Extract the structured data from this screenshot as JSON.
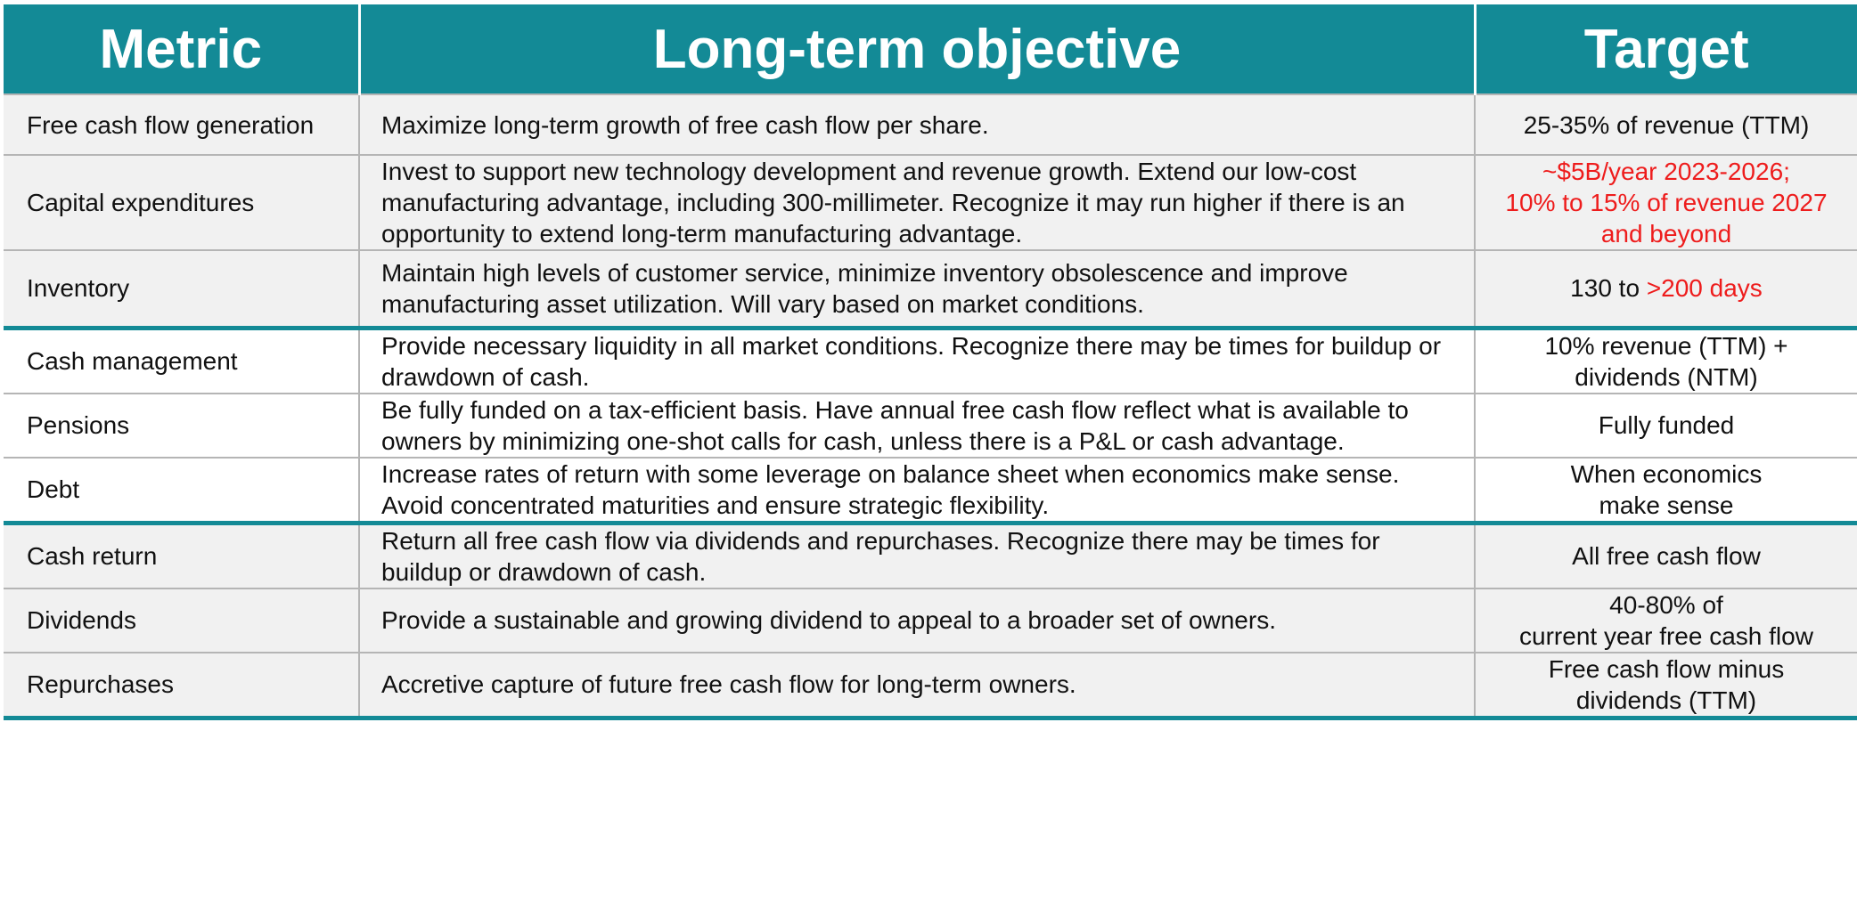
{
  "header": {
    "metric": "Metric",
    "objective": "Long-term objective",
    "target": "Target"
  },
  "colors": {
    "header_bg": "#138a96",
    "highlight_text": "#ee1c1c",
    "shaded_row_bg": "#f1f1f1"
  },
  "rows": [
    {
      "metric": "Free cash flow generation",
      "objective": "Maximize long-term growth of free cash flow per share.",
      "target_lines": [
        "25-35% of revenue (TTM)"
      ]
    },
    {
      "metric": "Capital expenditures",
      "objective": "Invest to support new technology development and revenue growth. Extend our low-cost manufacturing advantage, including 300-millimeter. Recognize it may run higher if there is an opportunity to extend long-term manufacturing advantage.",
      "target_lines": [
        "~$5B/year 2023-2026;",
        "10% to 15% of revenue 2027",
        "and beyond"
      ]
    },
    {
      "metric": "Inventory",
      "objective": "Maintain high levels of customer service, minimize inventory obsolescence and improve manufacturing asset utilization. Will vary based on market conditions.",
      "target_prefix": "130 to",
      "target_highlight": ">200 days"
    },
    {
      "metric": "Cash management",
      "objective": "Provide necessary liquidity in all market conditions. Recognize there may be times for buildup or drawdown of cash.",
      "target_lines": [
        "10% revenue (TTM) +",
        "dividends (NTM)"
      ]
    },
    {
      "metric": "Pensions",
      "objective": "Be fully funded on a tax-efficient basis. Have annual free cash flow reflect what is available to owners by minimizing one-shot calls for cash, unless there is a P&L or cash advantage.",
      "target_lines": [
        "Fully funded"
      ]
    },
    {
      "metric": "Debt",
      "objective": "Increase rates of return with some leverage on balance sheet when economics make sense. Avoid concentrated maturities and ensure strategic flexibility.",
      "target_lines": [
        "When economics",
        "make sense"
      ]
    },
    {
      "metric": "Cash return",
      "objective": "Return all free cash flow via dividends and repurchases. Recognize there may be times for buildup or drawdown of cash.",
      "target_lines": [
        "All free cash flow"
      ]
    },
    {
      "metric": "Dividends",
      "objective": "Provide a sustainable and growing dividend to appeal to a broader set of owners.",
      "target_lines": [
        "40-80% of",
        "current year free cash flow"
      ]
    },
    {
      "metric": "Repurchases",
      "objective": "Accretive capture of future free cash flow for long-term owners.",
      "target_lines": [
        "Free cash flow minus",
        "dividends (TTM)"
      ]
    }
  ]
}
